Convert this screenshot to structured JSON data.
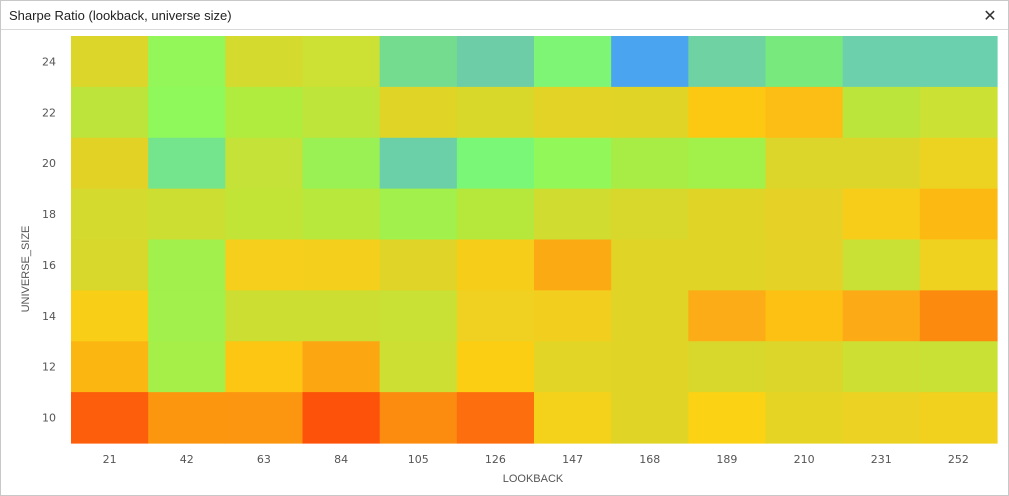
{
  "window": {
    "title": "Sharpe Ratio (lookback, universe  size)",
    "close_icon": "close-icon",
    "close_glyph": "✕"
  },
  "chart_data": {
    "type": "heatmap",
    "title": "Sharpe Ratio (lookback, universe  size)",
    "xlabel": "LOOKBACK",
    "ylabel": "UNIVERSE_SIZE",
    "x": [
      "21",
      "42",
      "63",
      "84",
      "105",
      "126",
      "147",
      "168",
      "189",
      "210",
      "231",
      "252"
    ],
    "y": [
      "24",
      "22",
      "20",
      "18",
      "16",
      "14",
      "12",
      "10"
    ],
    "colors": [
      [
        "#dcd62a",
        "#93f75a",
        "#d4db2e",
        "#cde034",
        "#74dc8f",
        "#6dcda7",
        "#7ef574",
        "#4aa4ef",
        "#6ed2a3",
        "#77e97d",
        "#6dd0ac",
        "#6bd0ad"
      ],
      [
        "#bde43a",
        "#8ff85a",
        "#b0ec3e",
        "#bde53a",
        "#e0d426",
        "#d8d82a",
        "#e2d326",
        "#e0d426",
        "#fdc812",
        "#fcbd14",
        "#bce53b",
        "#cbe133"
      ],
      [
        "#e2d226",
        "#74e58d",
        "#c4e237",
        "#99f154",
        "#6bd0a8",
        "#7af777",
        "#92f85a",
        "#a7ed46",
        "#a2f04a",
        "#dcd62a",
        "#dcd62a",
        "#ecd322"
      ],
      [
        "#d4da2e",
        "#ccde32",
        "#c2e436",
        "#b8e83c",
        "#a1f04b",
        "#b6e83c",
        "#d0dc30",
        "#d8d82c",
        "#e0d426",
        "#e6d226",
        "#f8cd1a",
        "#fcb912"
      ],
      [
        "#d8d82c",
        "#a1f04b",
        "#f6ce1c",
        "#f4cf1c",
        "#e0d428",
        "#f6ce1a",
        "#fcaa14",
        "#e0d426",
        "#e0d426",
        "#e4d326",
        "#c8e134",
        "#efd220"
      ],
      [
        "#f8ce16",
        "#a1f04b",
        "#cdde32",
        "#ccde32",
        "#c8e134",
        "#f0d020",
        "#f2cf1e",
        "#e0d426",
        "#fcac16",
        "#fcc112",
        "#fcaa16",
        "#fc8a0e"
      ],
      [
        "#fcb612",
        "#a5ef48",
        "#fcc612",
        "#fca712",
        "#ccdf32",
        "#fbce14",
        "#e2d526",
        "#e0d426",
        "#d8d82c",
        "#dcd62a",
        "#ccdf32",
        "#c8e134"
      ],
      [
        "#fc5e0c",
        "#fc960e",
        "#fc9610",
        "#fc520a",
        "#fc8c10",
        "#fc6e0e",
        "#f4d21c",
        "#e0d426",
        "#fcd214",
        "#e6d424",
        "#ecd222",
        "#f2d01e"
      ]
    ]
  }
}
